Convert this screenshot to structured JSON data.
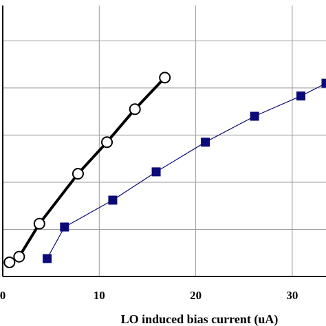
{
  "chart_data": {
    "type": "line",
    "title": "",
    "xlabel": "LO induced bias current (uA)",
    "ylabel": "",
    "xlim": [
      0,
      33.5
    ],
    "ylim": [
      0,
      5.75
    ],
    "grid": true,
    "x_ticks": [
      0,
      10,
      20,
      30
    ],
    "x_tick_labels": [
      "0",
      "10",
      "20",
      "30"
    ],
    "y_gridlines": [
      1,
      2,
      3,
      4,
      5
    ],
    "series": [
      {
        "marker": "open-circle",
        "line_style": "thick",
        "color": "#000000",
        "x": [
          0.7,
          1.7,
          3.8,
          7.8,
          10.8,
          13.7,
          16.8
        ],
        "y": [
          0.3,
          0.42,
          1.12,
          2.18,
          2.85,
          3.55,
          4.22
        ]
      },
      {
        "marker": "filled-square",
        "line_style": "thin",
        "color": "#0a0a78",
        "x": [
          4.6,
          6.4,
          11.4,
          15.9,
          21.0,
          26.1,
          30.9,
          33.5
        ],
        "y": [
          0.38,
          1.05,
          1.62,
          2.22,
          2.85,
          3.4,
          3.83,
          4.1
        ]
      }
    ]
  }
}
